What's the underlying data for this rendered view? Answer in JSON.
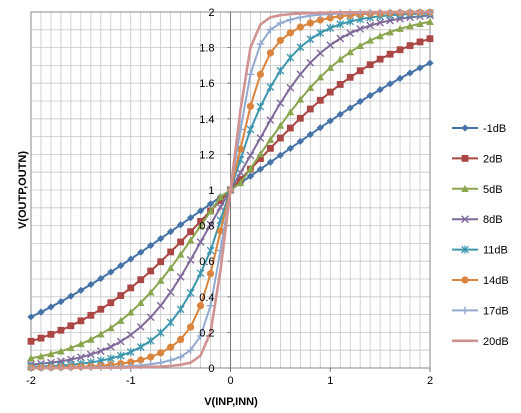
{
  "chart_data": {
    "type": "line",
    "title": "",
    "xlabel": "V(INP,INN)",
    "ylabel": "V(OUTP,OUTN)",
    "xlim": [
      -2,
      2
    ],
    "ylim": [
      0,
      2
    ],
    "x_ticks": [
      "-2",
      "-1",
      "0",
      "1",
      "2"
    ],
    "y_ticks": [
      "0",
      "0.2",
      "0.4",
      "0.6",
      "0.8",
      "1",
      "1.2",
      "1.4",
      "1.6",
      "1.8",
      "2"
    ],
    "grid": true,
    "legend_position": "right",
    "x": [
      -2.0,
      -1.9,
      -1.8,
      -1.7,
      -1.6,
      -1.5,
      -1.4,
      -1.3,
      -1.2,
      -1.1,
      -1.0,
      -0.9,
      -0.8,
      -0.7,
      -0.6,
      -0.5,
      -0.4,
      -0.3,
      -0.2,
      -0.1,
      0.0,
      0.1,
      0.2,
      0.3,
      0.4,
      0.5,
      0.6,
      0.7,
      0.8,
      0.9,
      1.0,
      1.1,
      1.2,
      1.3,
      1.4,
      1.5,
      1.6,
      1.7,
      1.8,
      1.9,
      2.0
    ],
    "series": [
      {
        "name": "-1dB",
        "color": "#4572A7",
        "marker": "diamond",
        "values": [
          0.287,
          0.314,
          0.343,
          0.373,
          0.404,
          0.436,
          0.469,
          0.503,
          0.539,
          0.575,
          0.612,
          0.65,
          0.688,
          0.727,
          0.766,
          0.805,
          0.844,
          0.883,
          0.922,
          0.961,
          1.0,
          1.039,
          1.078,
          1.117,
          1.156,
          1.195,
          1.234,
          1.273,
          1.312,
          1.35,
          1.388,
          1.425,
          1.461,
          1.497,
          1.531,
          1.564,
          1.596,
          1.627,
          1.657,
          1.686,
          1.713
        ]
      },
      {
        "name": "2dB",
        "color": "#AA4643",
        "marker": "square",
        "values": [
          0.15,
          0.168,
          0.189,
          0.212,
          0.237,
          0.265,
          0.296,
          0.33,
          0.367,
          0.407,
          0.45,
          0.496,
          0.545,
          0.597,
          0.652,
          0.708,
          0.766,
          0.824,
          0.883,
          0.941,
          1.0,
          1.059,
          1.117,
          1.176,
          1.234,
          1.292,
          1.348,
          1.403,
          1.455,
          1.504,
          1.55,
          1.593,
          1.633,
          1.67,
          1.704,
          1.735,
          1.763,
          1.788,
          1.811,
          1.832,
          1.85
        ]
      },
      {
        "name": "5dB",
        "color": "#89A54E",
        "marker": "triangle",
        "values": [
          0.055,
          0.066,
          0.079,
          0.094,
          0.113,
          0.135,
          0.16,
          0.19,
          0.225,
          0.266,
          0.313,
          0.366,
          0.425,
          0.491,
          0.562,
          0.638,
          0.717,
          0.798,
          0.88,
          0.96,
          1.0,
          1.04,
          1.12,
          1.202,
          1.283,
          1.362,
          1.438,
          1.509,
          1.575,
          1.634,
          1.687,
          1.734,
          1.775,
          1.81,
          1.84,
          1.865,
          1.887,
          1.906,
          1.921,
          1.934,
          1.945
        ]
      },
      {
        "name": "8dB",
        "color": "#80699B",
        "marker": "x",
        "values": [
          0.019,
          0.024,
          0.03,
          0.038,
          0.048,
          0.06,
          0.076,
          0.095,
          0.119,
          0.149,
          0.186,
          0.231,
          0.285,
          0.35,
          0.426,
          0.512,
          0.607,
          0.708,
          0.806,
          0.903,
          1.0,
          1.097,
          1.194,
          1.292,
          1.393,
          1.488,
          1.574,
          1.65,
          1.715,
          1.769,
          1.814,
          1.851,
          1.881,
          1.905,
          1.924,
          1.94,
          1.952,
          1.962,
          1.97,
          1.976,
          1.981
        ]
      },
      {
        "name": "11dB",
        "color": "#3D96AE",
        "marker": "star",
        "values": [
          0.007,
          0.009,
          0.011,
          0.014,
          0.018,
          0.024,
          0.031,
          0.041,
          0.053,
          0.069,
          0.09,
          0.118,
          0.153,
          0.198,
          0.256,
          0.33,
          0.422,
          0.532,
          0.66,
          0.83,
          1.0,
          1.17,
          1.34,
          1.468,
          1.578,
          1.67,
          1.744,
          1.802,
          1.847,
          1.882,
          1.91,
          1.931,
          1.947,
          1.959,
          1.969,
          1.976,
          1.982,
          1.986,
          1.989,
          1.991,
          1.993
        ]
      },
      {
        "name": "14dB",
        "color": "#DB843D",
        "marker": "circle",
        "values": [
          0.002,
          0.003,
          0.004,
          0.005,
          0.006,
          0.008,
          0.01,
          0.013,
          0.018,
          0.024,
          0.033,
          0.045,
          0.062,
          0.085,
          0.117,
          0.16,
          0.23,
          0.35,
          0.53,
          0.77,
          1.0,
          1.23,
          1.47,
          1.65,
          1.77,
          1.84,
          1.883,
          1.915,
          1.938,
          1.955,
          1.967,
          1.976,
          1.982,
          1.987,
          1.99,
          1.992,
          1.994,
          1.995,
          1.996,
          1.997,
          1.998
        ]
      },
      {
        "name": "17dB",
        "color": "#93A9CF",
        "marker": "plus",
        "values": [
          0.001,
          0.001,
          0.001,
          0.002,
          0.002,
          0.003,
          0.004,
          0.005,
          0.006,
          0.008,
          0.011,
          0.015,
          0.021,
          0.03,
          0.043,
          0.062,
          0.1,
          0.18,
          0.35,
          0.66,
          1.0,
          1.34,
          1.65,
          1.82,
          1.9,
          1.938,
          1.957,
          1.97,
          1.979,
          1.985,
          1.989,
          1.992,
          1.994,
          1.995,
          1.996,
          1.997,
          1.998,
          1.998,
          1.999,
          1.999,
          1.999
        ]
      },
      {
        "name": "20dB",
        "color": "#D19392",
        "marker": "none",
        "values": [
          0.0,
          0.0,
          0.0,
          0.0,
          0.001,
          0.001,
          0.001,
          0.001,
          0.002,
          0.002,
          0.003,
          0.004,
          0.006,
          0.008,
          0.012,
          0.018,
          0.03,
          0.07,
          0.2,
          0.55,
          1.0,
          1.45,
          1.8,
          1.93,
          1.97,
          1.982,
          1.988,
          1.992,
          1.994,
          1.996,
          1.997,
          1.998,
          1.998,
          1.999,
          1.999,
          1.999,
          2.0,
          2.0,
          2.0,
          2.0,
          2.0
        ]
      }
    ]
  }
}
